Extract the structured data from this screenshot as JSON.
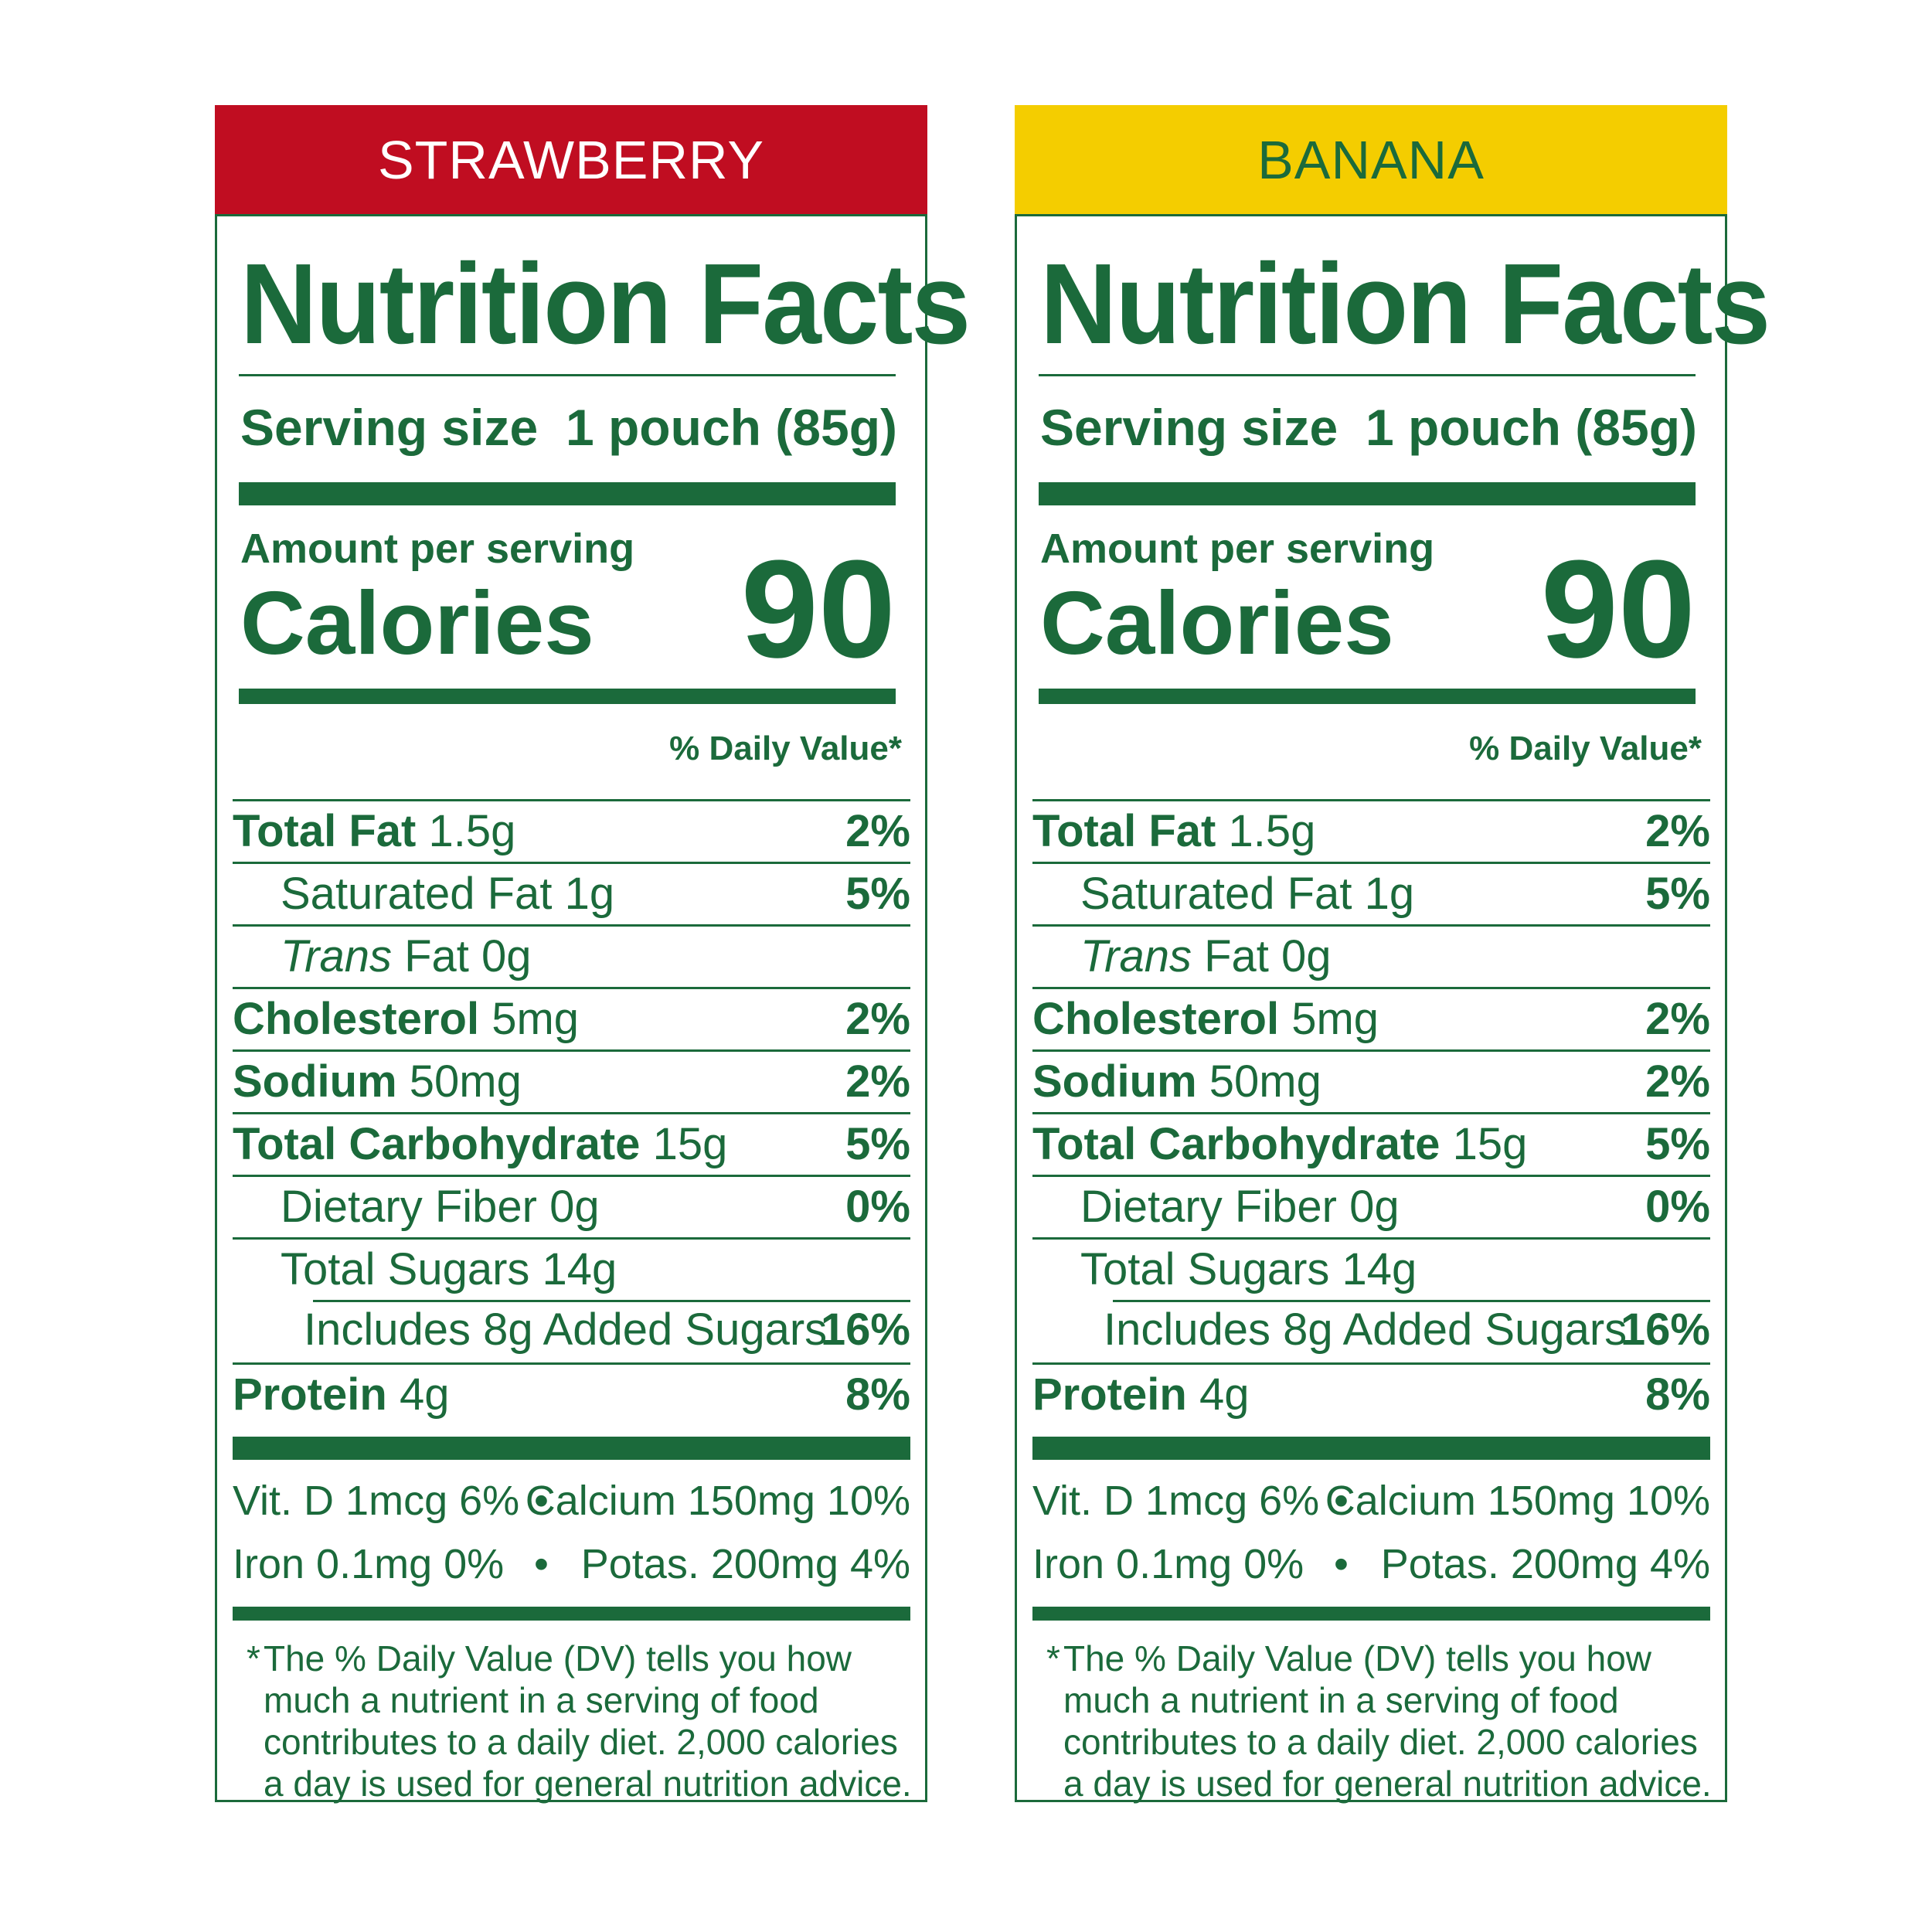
{
  "panels": [
    {
      "flavor": "STRAWBERRY",
      "header_bg": "#c00d21",
      "header_fg": "#ffffff",
      "title": "Nutrition Facts",
      "serving_label": "Serving size",
      "serving_value": "1 pouch (85g)",
      "amount_label": "Amount per serving",
      "calories_label": "Calories",
      "calories_value": "90",
      "dv_header": "% Daily Value*",
      "nutrients": [
        {
          "name": "Total Fat",
          "amount": "1.5g",
          "dv": "2%"
        },
        {
          "name": "Saturated Fat",
          "amount": "1g",
          "dv": "5%"
        },
        {
          "name": "Trans",
          "suffix": "Fat",
          "amount": "0g",
          "dv": ""
        },
        {
          "name": "Cholesterol",
          "amount": "5mg",
          "dv": "2%"
        },
        {
          "name": "Sodium",
          "amount": "50mg",
          "dv": "2%"
        },
        {
          "name": "Total Carbohydrate",
          "amount": "15g",
          "dv": "5%"
        },
        {
          "name": "Dietary Fiber",
          "amount": "0g",
          "dv": "0%"
        },
        {
          "name": "Total Sugars",
          "amount": "14g",
          "dv": ""
        },
        {
          "text": "Includes 8g Added Sugars",
          "dv": "16%"
        },
        {
          "name": "Protein",
          "amount": "4g",
          "dv": "8%"
        }
      ],
      "vitamins": [
        {
          "left": "Vit. D 1mcg 6%",
          "right": "Calcium 150mg 10%"
        },
        {
          "left": "Iron 0.1mg 0%",
          "right": "Potas. 200mg 4%"
        }
      ],
      "bullet": "•",
      "footnote_star": "*",
      "footnote": "The % Daily Value (DV) tells you how much a nutrient in a serving of food contributes to a daily diet. 2,000 calories a day is used for general nutrition advice."
    },
    {
      "flavor": "BANANA",
      "header_bg": "#f4cd00",
      "header_fg": "#1b6a3b",
      "title": "Nutrition Facts",
      "serving_label": "Serving size",
      "serving_value": "1 pouch (85g)",
      "amount_label": "Amount per serving",
      "calories_label": "Calories",
      "calories_value": "90",
      "dv_header": "% Daily Value*",
      "nutrients": [
        {
          "name": "Total Fat",
          "amount": "1.5g",
          "dv": "2%"
        },
        {
          "name": "Saturated Fat",
          "amount": "1g",
          "dv": "5%"
        },
        {
          "name": "Trans",
          "suffix": "Fat",
          "amount": "0g",
          "dv": ""
        },
        {
          "name": "Cholesterol",
          "amount": "5mg",
          "dv": "2%"
        },
        {
          "name": "Sodium",
          "amount": "50mg",
          "dv": "2%"
        },
        {
          "name": "Total Carbohydrate",
          "amount": "15g",
          "dv": "5%"
        },
        {
          "name": "Dietary Fiber",
          "amount": "0g",
          "dv": "0%"
        },
        {
          "name": "Total Sugars",
          "amount": "14g",
          "dv": ""
        },
        {
          "text": "Includes 8g Added Sugars",
          "dv": "16%"
        },
        {
          "name": "Protein",
          "amount": "4g",
          "dv": "8%"
        }
      ],
      "vitamins": [
        {
          "left": "Vit. D 1mcg 6%",
          "right": "Calcium 150mg 10%"
        },
        {
          "left": "Iron 0.1mg 0%",
          "right": "Potas. 200mg 4%"
        }
      ],
      "bullet": "•",
      "footnote_star": "*",
      "footnote": "The % Daily Value (DV) tells you how much a nutrient in a serving of food contributes to a daily diet. 2,000 calories a day is used for general nutrition advice."
    }
  ],
  "theme": {
    "text_color": "#1b6a3b",
    "background": "#ffffff"
  }
}
